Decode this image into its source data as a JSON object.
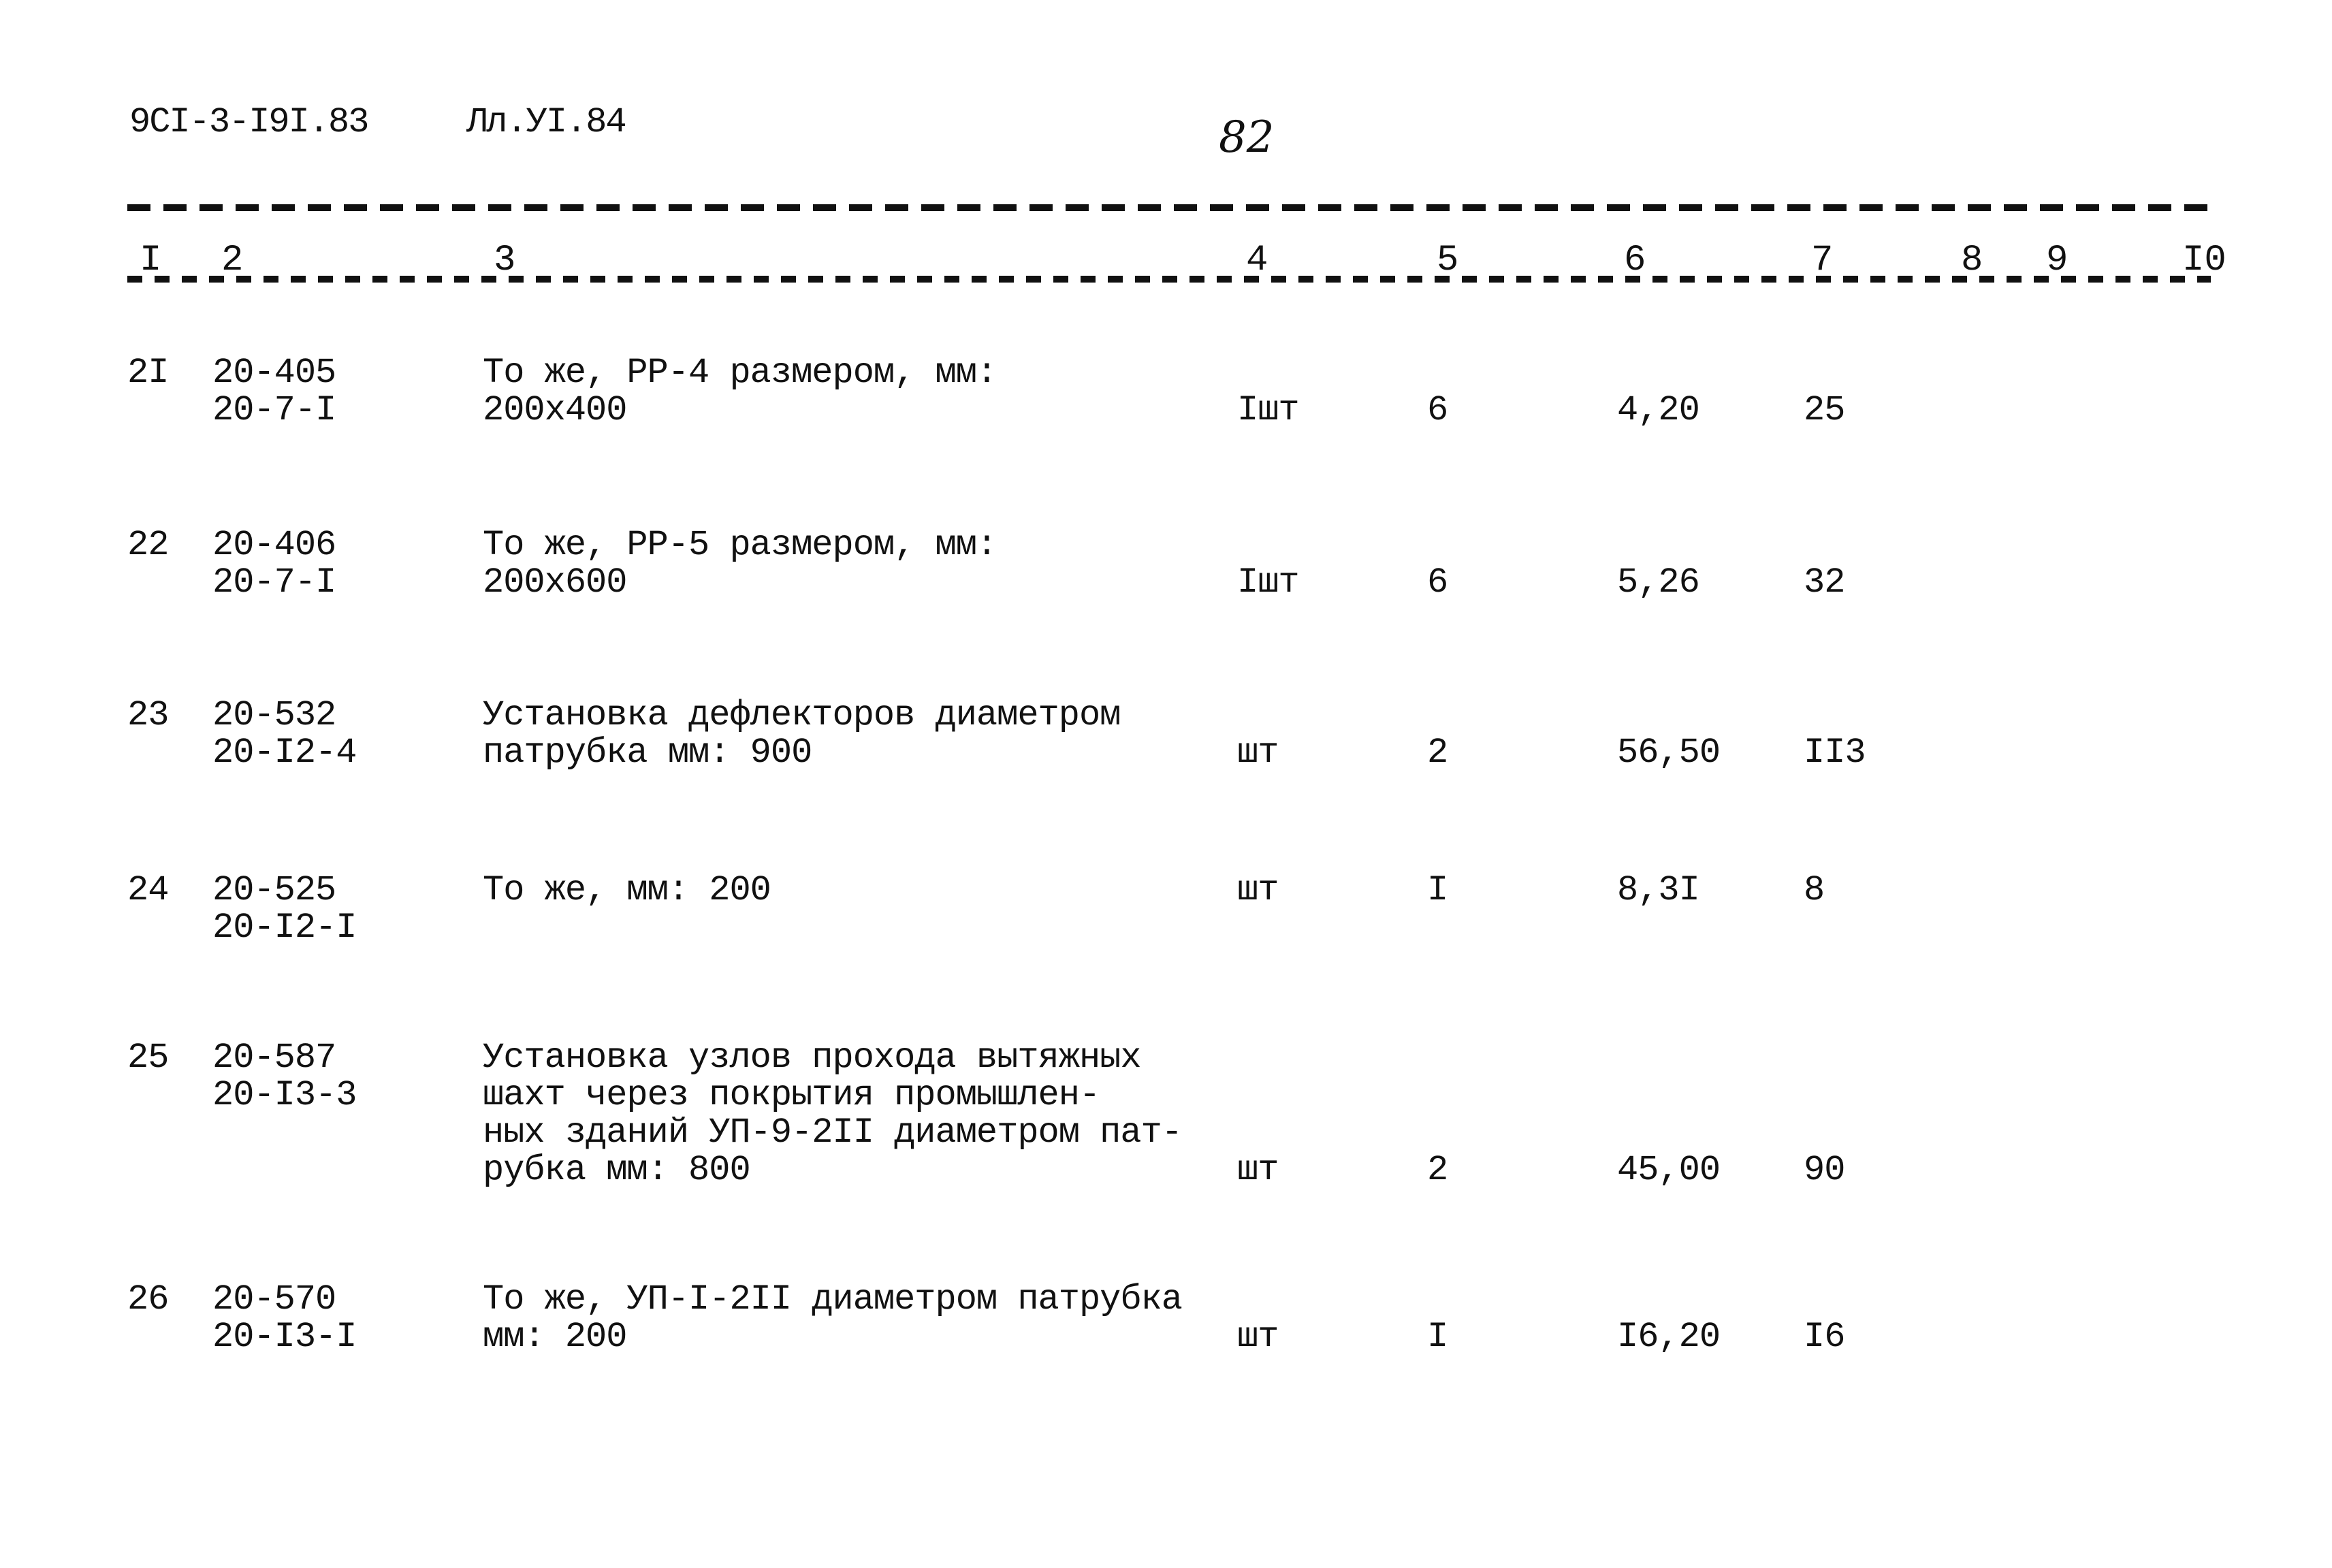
{
  "header": {
    "doc_code": "9CI-3-I9I.83",
    "sheet": "Лл.УI.84",
    "page_number": "82"
  },
  "column_numbers": [
    "I",
    "2",
    "3",
    "4",
    "5",
    "6",
    "7",
    "8",
    "9",
    "I0"
  ],
  "rows": [
    {
      "num": "2I",
      "codes": [
        "20-405",
        "20-7-I"
      ],
      "desc": [
        "То же, РР-4 размером, мм:",
        "200х400"
      ],
      "unit": "Iшт",
      "qty": "6",
      "price": "4,20",
      "total": "25"
    },
    {
      "num": "22",
      "codes": [
        "20-406",
        "20-7-I"
      ],
      "desc": [
        "То же, РР-5 размером, мм:",
        "200х600"
      ],
      "unit": "Iшт",
      "qty": "6",
      "price": "5,26",
      "total": "32"
    },
    {
      "num": "23",
      "codes": [
        "20-532",
        "20-I2-4"
      ],
      "desc": [
        "Установка дефлекторов диаметром",
        "патрубка мм: 900"
      ],
      "unit": "шт",
      "qty": "2",
      "price": "56,50",
      "total": "II3"
    },
    {
      "num": "24",
      "codes": [
        "20-525",
        "20-I2-I"
      ],
      "desc": [
        "То же, мм: 200"
      ],
      "unit": "шт",
      "qty": "I",
      "price": "8,3I",
      "total": "8"
    },
    {
      "num": "25",
      "codes": [
        "20-587",
        "20-I3-3"
      ],
      "desc": [
        "Установка узлов прохода вытяжных",
        "шахт через покрытия промышлен-",
        "ных зданий УП-9-2II диаметром пат-",
        "рубка мм: 800"
      ],
      "unit": "шт",
      "qty": "2",
      "price": "45,00",
      "total": "90"
    },
    {
      "num": "26",
      "codes": [
        "20-570",
        "20-I3-I"
      ],
      "desc": [
        "То же, УП-I-2II диаметром патрубка",
        "мм: 200"
      ],
      "unit": "шт",
      "qty": "I",
      "price": "I6,20",
      "total": "I6"
    }
  ]
}
